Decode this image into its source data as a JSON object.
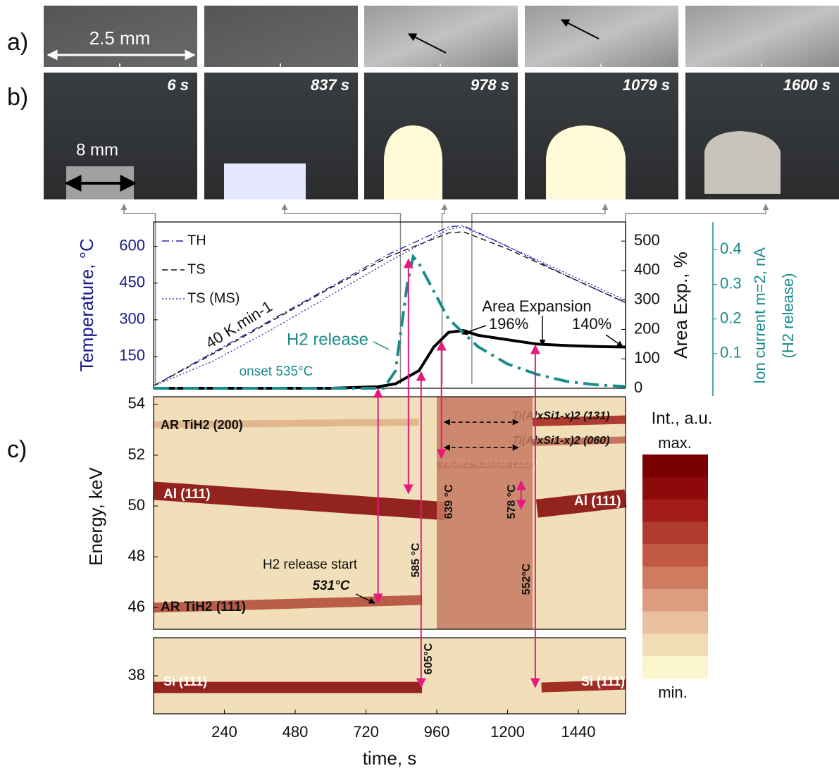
{
  "panel_labels": [
    "a)",
    "b)",
    "c)"
  ],
  "photos_a": {
    "scale_label": "2.5 mm"
  },
  "photos_b": {
    "scale_label": "8 mm",
    "frames": [
      {
        "label": "6 s",
        "time": 6
      },
      {
        "label": "837 s",
        "time": 837
      },
      {
        "label": "978 s",
        "time": 978
      },
      {
        "label": "1079 s",
        "time": 1079
      },
      {
        "label": "1600 s",
        "time": 1600
      }
    ]
  },
  "chart_data": [
    {
      "type": "line",
      "xlim": [
        0,
        1600
      ],
      "ylim": [
        20,
        700
      ],
      "yticks": [
        150,
        300,
        450,
        600
      ],
      "ylabel": "Temperature, °C",
      "y2lim": [
        0,
        565
      ],
      "y2ticks": [
        0,
        100,
        200,
        300,
        400,
        500
      ],
      "y2label": "Area Exp., %",
      "y3lim": [
        0,
        0.48
      ],
      "y3ticks": [
        0.1,
        0.2,
        0.3,
        0.4
      ],
      "y3label": "Ion current m=2, nA",
      "y3label2": "(H2 release)",
      "series": [
        {
          "name": "TH",
          "color": "#2b2bb0",
          "style": "dashdot",
          "x": [
            0,
            200,
            400,
            600,
            800,
            1000,
            1050,
            1200,
            1400,
            1600
          ],
          "values": [
            30,
            165,
            300,
            435,
            570,
            680,
            685,
            600,
            480,
            370
          ]
        },
        {
          "name": "TS",
          "color": "#111111",
          "style": "dashed",
          "x": [
            0,
            200,
            400,
            600,
            800,
            1000,
            1050,
            1200,
            1400,
            1600
          ],
          "values": [
            30,
            160,
            295,
            430,
            560,
            655,
            660,
            590,
            480,
            370
          ]
        },
        {
          "name": "TS (MS)",
          "color": "#2b2bb0",
          "style": "dotted",
          "x": [
            0,
            200,
            400,
            600,
            800,
            1000,
            1050,
            1200,
            1400,
            1600
          ],
          "values": [
            30,
            130,
            260,
            400,
            540,
            670,
            680,
            600,
            490,
            380
          ]
        },
        {
          "color": "#000000",
          "style": "solid",
          "axis": "y2",
          "x": [
            0,
            200,
            400,
            600,
            760,
            820,
            900,
            950,
            1000,
            1050,
            1100,
            1200,
            1300,
            1400,
            1500,
            1600
          ],
          "values": [
            0,
            0,
            0,
            0,
            5,
            15,
            60,
            140,
            190,
            196,
            180,
            165,
            150,
            145,
            142,
            140
          ]
        },
        {
          "color": "#1a8a8a",
          "style": "dashdot",
          "axis": "y3",
          "x": [
            0,
            700,
            780,
            820,
            860,
            880,
            900,
            950,
            1000,
            1100,
            1200,
            1300,
            1400,
            1500,
            1600
          ],
          "values": [
            0,
            0,
            0,
            0.05,
            0.3,
            0.38,
            0.36,
            0.28,
            0.2,
            0.12,
            0.07,
            0.04,
            0.02,
            0.01,
            0.005
          ]
        }
      ],
      "annotations": [
        "40 K.min-1",
        "H2 release",
        "onset 535°C",
        "Area Expansion",
        "196%",
        "140%"
      ]
    },
    {
      "type": "heatmap",
      "xlim": [
        0,
        1600
      ],
      "ylim": [
        45.15,
        54.3
      ],
      "yticks": [
        46,
        48,
        50,
        52,
        54
      ],
      "ylabel": "Energy,  keV",
      "bands": [
        {
          "label": "AR TiH2 (200)",
          "x": [
            0,
            900
          ],
          "energy": [
            53.2,
            53.3
          ]
        },
        {
          "label": "Al (111)",
          "x": [
            0,
            990
          ],
          "energy": [
            50.6,
            49.8
          ]
        },
        {
          "label": "Al (111)",
          "x": [
            1300,
            1600
          ],
          "energy": [
            49.9,
            50.3
          ]
        },
        {
          "label": "AR TiH2 (111)",
          "x": [
            0,
            910
          ],
          "energy": [
            46.0,
            46.3
          ]
        },
        {
          "label": "Ti(AlxSi1-x)2 (131)",
          "x": [
            1285,
            1600
          ],
          "energy": [
            53.3,
            53.4
          ]
        },
        {
          "label": "Ti(AlxSi1-x)2 (060)",
          "x": [
            1285,
            1600
          ],
          "energy": [
            52.5,
            52.6
          ]
        },
        {
          "label": "Ti(Al1-xSix)3 (112)",
          "x": [
            960,
            1285
          ],
          "energy": [
            51.6,
            51.6
          ]
        },
        {
          "x": [
            960,
            1285
          ],
          "energy": [
            45.15,
            54.3
          ]
        }
      ],
      "arrows": [
        761,
        864,
        907,
        976,
        1246,
        1294
      ],
      "links": [
        {
          "x": [
            976,
            1246
          ],
          "energy": 53.3
        },
        {
          "x": [
            976,
            1246
          ],
          "energy": 52.3
        }
      ],
      "annotations": [
        "639 °C",
        "578 °C",
        "585 °C",
        "552°C",
        "605°C",
        "531°C",
        "H2 release start"
      ],
      "colorbar": {
        "title": "Int., a.u.",
        "max_label": "max.",
        "min_label": "min.",
        "colors": [
          "#7a0000",
          "#8c0a0a",
          "#a11c18",
          "#b03a2c",
          "#c05a44",
          "#cf7b60",
          "#dc9c80",
          "#e8c0a0",
          "#f1dcb6",
          "#fbf6cc"
        ]
      }
    },
    {
      "type": "heatmap",
      "xlim": [
        0,
        1600
      ],
      "ylim": [
        36.7,
        39.3
      ],
      "yticks": [
        38
      ],
      "xticks": [
        240,
        480,
        720,
        960,
        1200,
        1440
      ],
      "xlabel": "time,  s",
      "bands": [
        {
          "label": "Si (111)",
          "x": [
            0,
            910
          ],
          "energy": [
            37.6,
            37.6
          ]
        },
        {
          "label": "Si (111)",
          "x": [
            1315,
            1600
          ],
          "energy": [
            37.6,
            37.7
          ]
        }
      ]
    }
  ]
}
